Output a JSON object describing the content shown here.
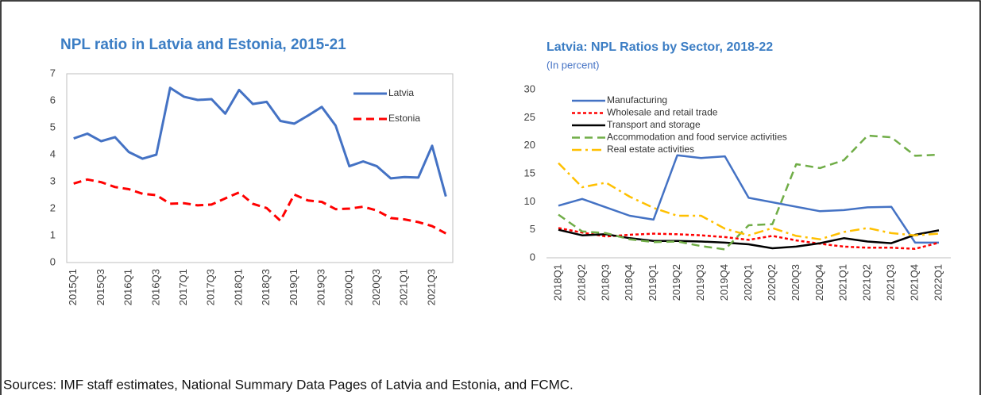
{
  "chart_data": [
    {
      "type": "line",
      "title": "NPL ratio in Latvia and Estonia, 2015-21",
      "categories": [
        "2015Q1",
        null,
        "2015Q3",
        null,
        "2016Q1",
        null,
        "2016Q3",
        null,
        "2017Q1",
        null,
        "2017Q3",
        null,
        "2018Q1",
        null,
        "2018Q3",
        null,
        "2019Q1",
        null,
        "2019Q3",
        null,
        "2020Q1",
        null,
        "2020Q3",
        null,
        "2021Q1",
        null,
        "2021Q3",
        null
      ],
      "series": [
        {
          "name": "Latvia",
          "color": "#4472c4",
          "linestyle": "solid",
          "values": [
            4.6,
            4.78,
            4.5,
            4.65,
            4.1,
            3.85,
            4.0,
            6.48,
            6.15,
            6.03,
            6.06,
            5.52,
            6.4,
            5.88,
            5.96,
            5.25,
            5.15,
            5.45,
            5.77,
            5.08,
            3.57,
            3.75,
            3.57,
            3.12,
            3.17,
            3.15,
            4.33,
            2.45
          ]
        },
        {
          "name": "Estonia",
          "color": "#ff0000",
          "linestyle": "dashed",
          "values": [
            2.93,
            3.08,
            2.98,
            2.8,
            2.72,
            2.55,
            2.5,
            2.18,
            2.2,
            2.12,
            2.15,
            2.38,
            2.6,
            2.18,
            2.02,
            1.55,
            2.52,
            2.3,
            2.25,
            1.98,
            2.0,
            2.07,
            1.93,
            1.65,
            1.6,
            1.5,
            1.35,
            1.08
          ]
        }
      ],
      "ylim": [
        0,
        7
      ],
      "yticks": [
        0,
        1,
        2,
        3,
        4,
        5,
        6,
        7
      ],
      "grid": false,
      "legend": "upper right"
    },
    {
      "type": "line",
      "title": "Latvia: NPL Ratios by Sector, 2018-22",
      "subtitle": "(In percent)",
      "categories": [
        "2018Q1",
        "2018Q2",
        "2018Q3",
        "2018Q4",
        "2019Q1",
        "2019Q2",
        "2019Q3",
        "2019Q4",
        "2020Q1",
        "2020Q2",
        "2020Q3",
        "2020Q4",
        "2021Q1",
        "2021Q2",
        "2021Q3",
        "2021Q4",
        "2022Q1"
      ],
      "series": [
        {
          "name": "Manufacturing",
          "color": "#4472c4",
          "linestyle": "solid",
          "values": [
            9.3,
            10.5,
            9.0,
            7.5,
            6.8,
            18.3,
            17.8,
            18.1,
            10.7,
            9.9,
            9.1,
            8.3,
            8.5,
            9.0,
            9.1,
            2.7,
            2.7
          ]
        },
        {
          "name": "Wholesale and retail trade",
          "color": "#ff0000",
          "linestyle": "dotted",
          "values": [
            5.3,
            4.5,
            3.8,
            4.1,
            4.3,
            4.2,
            4.0,
            3.7,
            3.2,
            3.9,
            3.1,
            2.5,
            2.0,
            1.8,
            1.8,
            1.6,
            2.7
          ]
        },
        {
          "name": "Transport and storage",
          "color": "#000000",
          "linestyle": "solid",
          "values": [
            5.0,
            4.0,
            4.2,
            3.5,
            3.0,
            3.0,
            2.9,
            2.7,
            2.4,
            1.7,
            2.0,
            2.6,
            3.5,
            2.9,
            2.6,
            4.1,
            4.9
          ]
        },
        {
          "name": "Accommodation and food service activities",
          "color": "#70ad47",
          "linestyle": "dashed",
          "values": [
            7.7,
            4.7,
            4.4,
            3.3,
            2.8,
            2.9,
            2.1,
            1.5,
            5.8,
            6.0,
            16.7,
            16.0,
            17.4,
            21.8,
            21.5,
            18.2,
            18.4
          ]
        },
        {
          "name": "Real estate activities",
          "color": "#ffc000",
          "linestyle": "dashdot",
          "values": [
            16.9,
            12.6,
            13.4,
            10.9,
            8.9,
            7.5,
            7.5,
            5.2,
            4.0,
            5.3,
            3.9,
            3.3,
            4.6,
            5.3,
            4.4,
            4.0,
            4.3
          ]
        }
      ],
      "ylim": [
        0,
        30
      ],
      "yticks": [
        0,
        5,
        10,
        15,
        20,
        25,
        30
      ],
      "grid": false,
      "legend": "upper left"
    }
  ],
  "source": "Sources: IMF staff estimates, National Summary Data Pages of Latvia and Estonia, and FCMC."
}
